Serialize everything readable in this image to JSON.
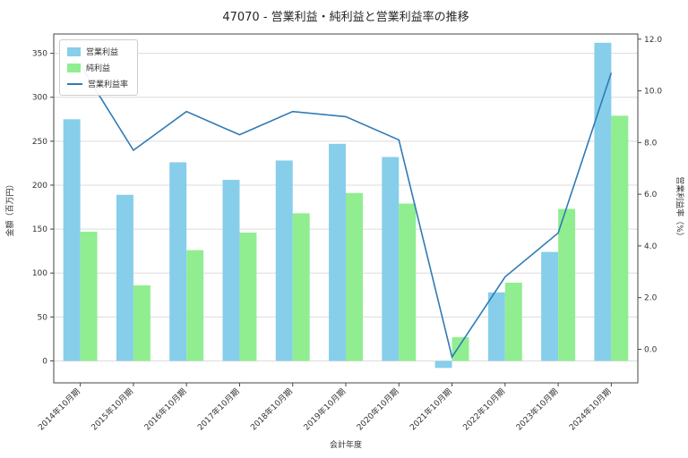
{
  "title": "47070 - 営業利益・純利益と営業利益率の推移",
  "chart_data": {
    "type": "bar",
    "subtype": "grouped-bars-with-line",
    "categories": [
      "2014年10月期",
      "2015年10月期",
      "2016年10月期",
      "2017年10月期",
      "2018年10月期",
      "2019年10月期",
      "2020年10月期",
      "2021年10月期",
      "2022年10月期",
      "2023年10月期",
      "2024年10月期"
    ],
    "series": [
      {
        "name": "営業利益",
        "type": "bar",
        "axis": "left",
        "color": "#87ceeb",
        "values": [
          275,
          189,
          226,
          206,
          228,
          247,
          232,
          -8,
          78,
          124,
          362
        ]
      },
      {
        "name": "純利益",
        "type": "bar",
        "axis": "left",
        "color": "#90ee90",
        "values": [
          147,
          86,
          126,
          146,
          168,
          191,
          179,
          27,
          89,
          173,
          279
        ]
      },
      {
        "name": "営業利益率",
        "type": "line",
        "axis": "right",
        "color": "#2f7bb5",
        "values": [
          11.0,
          7.7,
          9.2,
          8.3,
          9.2,
          9.0,
          8.1,
          -0.3,
          2.8,
          4.5,
          10.7
        ]
      }
    ],
    "title": "47070 - 営業利益・純利益と営業利益率の推移",
    "xlabel": "会計年度",
    "ylabel_left": "金額（百万円）",
    "ylabel_right": "営業利益率（%）",
    "left_ticks": [
      0,
      50,
      100,
      150,
      200,
      250,
      300,
      350
    ],
    "right_tick_values": [
      0,
      2,
      4,
      6,
      8,
      10,
      12
    ],
    "right_tick_labels": [
      "0.0",
      "2.0",
      "4.0",
      "6.0",
      "8.0",
      "10.0",
      "12.0"
    ],
    "left_ylim": [
      -25,
      372
    ],
    "right_ylim": [
      -1.3,
      12.2
    ],
    "grid": true,
    "grid_color": "#dcdcdc",
    "legend_position": "upper-left"
  }
}
